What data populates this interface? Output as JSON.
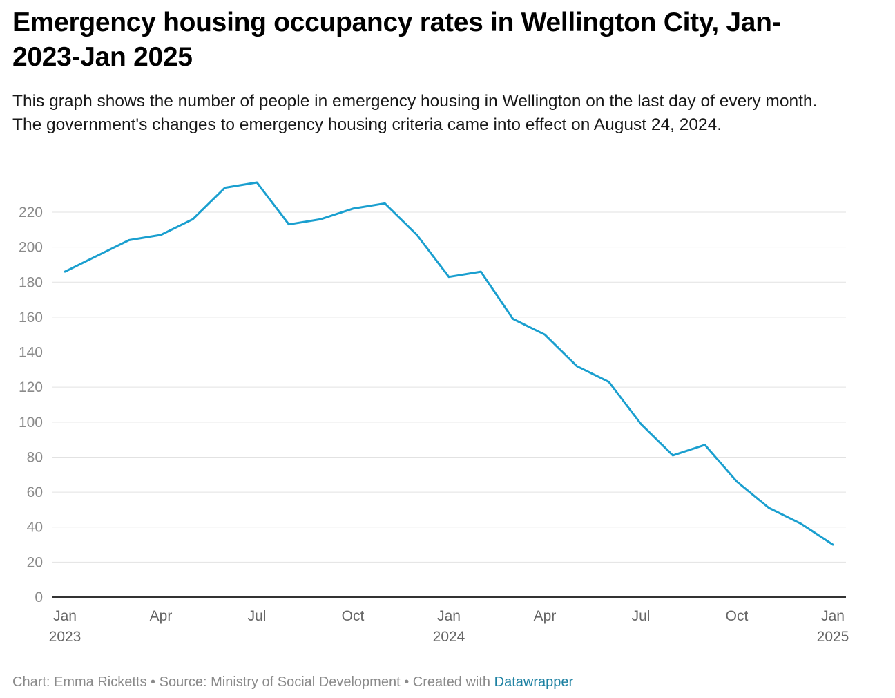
{
  "title": "Emergency housing occupancy rates in Wellington City, Jan-2023-Jan 2025",
  "subtitle": "This graph shows the number of people in emergency housing in Wellington on the last day of every month. The government's changes to emergency housing criteria came into effect on August 24, 2024.",
  "footer": {
    "credit": "Chart: Emma Ricketts",
    "separator": " • ",
    "source": "Source: Ministry of Social Development",
    "created_with": "Created with ",
    "link": "Datawrapper"
  },
  "colors": {
    "line": "#1a9fcf",
    "grid": "#e2e2e2",
    "axis": "#333333"
  },
  "chart_data": {
    "type": "line",
    "title": "Emergency housing occupancy rates in Wellington City, Jan-2023-Jan 2025",
    "xlabel": "",
    "ylabel": "",
    "ylim": [
      0,
      230
    ],
    "yticks": [
      0,
      20,
      40,
      60,
      80,
      100,
      120,
      140,
      160,
      180,
      200,
      220
    ],
    "grid": true,
    "xticks": [
      {
        "index": 0,
        "label": "Jan",
        "year": "2023"
      },
      {
        "index": 3,
        "label": "Apr",
        "year": ""
      },
      {
        "index": 6,
        "label": "Jul",
        "year": ""
      },
      {
        "index": 9,
        "label": "Oct",
        "year": ""
      },
      {
        "index": 12,
        "label": "Jan",
        "year": "2024"
      },
      {
        "index": 15,
        "label": "Apr",
        "year": ""
      },
      {
        "index": 18,
        "label": "Jul",
        "year": ""
      },
      {
        "index": 21,
        "label": "Oct",
        "year": ""
      },
      {
        "index": 24,
        "label": "Jan",
        "year": "2025"
      }
    ],
    "x": [
      "2023-01",
      "2023-02",
      "2023-03",
      "2023-04",
      "2023-05",
      "2023-06",
      "2023-07",
      "2023-08",
      "2023-09",
      "2023-10",
      "2023-11",
      "2023-12",
      "2024-01",
      "2024-02",
      "2024-03",
      "2024-04",
      "2024-05",
      "2024-06",
      "2024-07",
      "2024-08",
      "2024-09",
      "2024-10",
      "2024-11",
      "2024-12",
      "2025-01"
    ],
    "series": [
      {
        "name": "People in emergency housing",
        "values": [
          186,
          195,
          204,
          207,
          216,
          234,
          237,
          213,
          216,
          222,
          225,
          207,
          183,
          186,
          159,
          150,
          132,
          123,
          99,
          81,
          87,
          66,
          51,
          42,
          30
        ]
      }
    ]
  }
}
